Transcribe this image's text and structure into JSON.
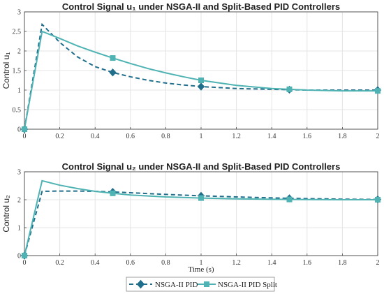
{
  "chart_data": [
    {
      "type": "line",
      "title": "Control Signal u₁ under NSGA-II and Split-Based PID Controllers",
      "ylabel": "Control u₁",
      "xlabel": "",
      "xlim": [
        0,
        2
      ],
      "ylim": [
        0,
        3
      ],
      "xticks": [
        0,
        0.2,
        0.4,
        0.6,
        0.8,
        1,
        1.2,
        1.4,
        1.6,
        1.8,
        2
      ],
      "yticks": [
        0,
        0.5,
        1,
        1.5,
        2,
        2.5,
        3
      ],
      "grid": true,
      "series": [
        {
          "name": "NSGA-II PID",
          "style": "dashed",
          "marker": "diamond",
          "color": "#1f6e8c",
          "x": [
            0,
            0.1,
            0.2,
            0.3,
            0.4,
            0.5,
            0.6,
            0.7,
            0.8,
            0.9,
            1.0,
            1.2,
            1.4,
            1.5,
            1.6,
            1.8,
            2.0
          ],
          "y": [
            0,
            2.68,
            2.22,
            1.85,
            1.6,
            1.45,
            1.34,
            1.25,
            1.18,
            1.13,
            1.09,
            1.04,
            1.02,
            1.01,
            1.0,
            1.0,
            1.0
          ],
          "marker_x": [
            0,
            0.5,
            1.0,
            1.5,
            2.0
          ],
          "marker_y": [
            0,
            1.45,
            1.09,
            1.01,
            1.0
          ]
        },
        {
          "name": "NSGA-II PID Split",
          "style": "solid",
          "marker": "square",
          "color": "#4fb3b3",
          "x": [
            0,
            0.1,
            0.2,
            0.3,
            0.4,
            0.5,
            0.6,
            0.7,
            0.8,
            0.9,
            1.0,
            1.2,
            1.4,
            1.5,
            1.6,
            1.8,
            2.0
          ],
          "y": [
            0,
            2.5,
            2.32,
            2.13,
            1.97,
            1.82,
            1.68,
            1.55,
            1.44,
            1.34,
            1.25,
            1.12,
            1.04,
            1.02,
            1.0,
            0.98,
            0.98
          ],
          "marker_x": [
            0,
            0.5,
            1.0,
            1.5,
            2.0
          ],
          "marker_y": [
            0,
            1.82,
            1.25,
            1.02,
            0.98
          ]
        }
      ]
    },
    {
      "type": "line",
      "title": "Control Signal u₂ under NSGA-II and Split-Based PID Controllers",
      "ylabel": "Control u₂",
      "xlabel": "Time (s)",
      "xlim": [
        0,
        2
      ],
      "ylim": [
        0,
        3
      ],
      "xticks": [
        0,
        0.2,
        0.4,
        0.6,
        0.8,
        1,
        1.2,
        1.4,
        1.6,
        1.8,
        2
      ],
      "yticks": [
        0,
        1,
        2,
        3
      ],
      "grid": true,
      "series": [
        {
          "name": "NSGA-II PID",
          "style": "dashed",
          "marker": "diamond",
          "color": "#1f6e8c",
          "x": [
            0,
            0.1,
            0.2,
            0.3,
            0.4,
            0.5,
            0.6,
            0.8,
            1.0,
            1.2,
            1.5,
            1.8,
            2.0
          ],
          "y": [
            0,
            2.3,
            2.31,
            2.31,
            2.3,
            2.28,
            2.25,
            2.19,
            2.14,
            2.1,
            2.05,
            2.02,
            2.01
          ],
          "marker_x": [
            0,
            0.5,
            1.0,
            1.5,
            2.0
          ],
          "marker_y": [
            0,
            2.28,
            2.14,
            2.05,
            2.01
          ]
        },
        {
          "name": "NSGA-II PID Split",
          "style": "solid",
          "marker": "square",
          "color": "#4fb3b3",
          "x": [
            0,
            0.1,
            0.2,
            0.3,
            0.4,
            0.5,
            0.6,
            0.8,
            1.0,
            1.2,
            1.5,
            1.8,
            2.0
          ],
          "y": [
            0,
            2.68,
            2.52,
            2.4,
            2.3,
            2.23,
            2.17,
            2.1,
            2.06,
            2.03,
            2.01,
            2.0,
            2.0
          ],
          "marker_x": [
            0,
            0.5,
            1.0,
            1.5,
            2.0
          ],
          "marker_y": [
            0,
            2.23,
            2.06,
            2.01,
            2.0
          ]
        }
      ]
    }
  ],
  "legend": {
    "items": [
      {
        "label": "NSGA-II PID",
        "style": "dashed",
        "marker": "diamond",
        "color": "#1f6e8c"
      },
      {
        "label": "NSGA-II PID Split",
        "style": "solid",
        "marker": "square",
        "color": "#4fb3b3"
      }
    ]
  }
}
